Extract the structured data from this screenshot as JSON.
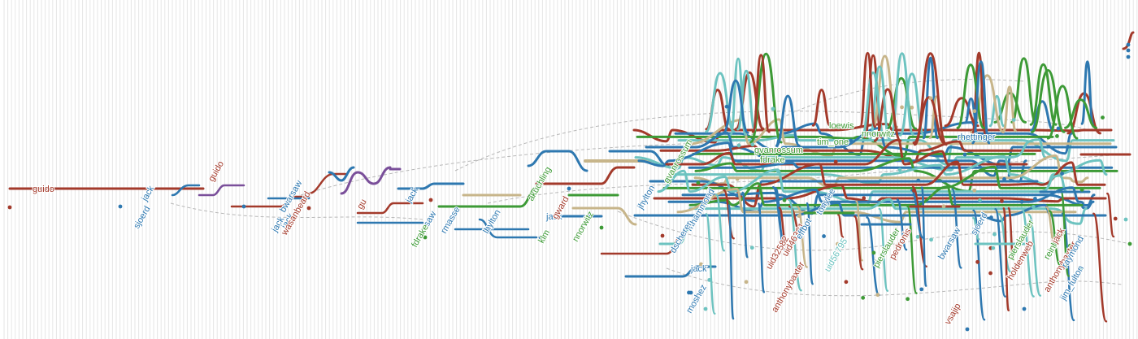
{
  "palette": {
    "red": "#a33a2b",
    "blue": "#2e78b0",
    "green": "#3d9a36",
    "teal": "#6dc3c0",
    "tan": "#c7b58a",
    "purple": "#7a4f9a",
    "grid": "#e6e6e6",
    "dashed": "#b8b8b8"
  },
  "labels": [
    {
      "text": "guido",
      "color": "red",
      "rotate": 0
    },
    {
      "text": "jack",
      "color": "blue",
      "rotate": -60
    },
    {
      "text": "sjoerd",
      "color": "blue",
      "rotate": -60
    },
    {
      "text": "guido",
      "color": "red",
      "rotate": -60
    },
    {
      "text": "bwarsaw",
      "color": "blue",
      "rotate": -60
    },
    {
      "text": "jack",
      "color": "blue",
      "rotate": -60
    },
    {
      "text": "jack",
      "color": "blue",
      "rotate": -60
    },
    {
      "text": "wasanbeard",
      "color": "red",
      "rotate": -60
    },
    {
      "text": "gu",
      "color": "red",
      "rotate": -60
    },
    {
      "text": "jack",
      "color": "blue",
      "rotate": -60
    },
    {
      "text": "bwarsaw",
      "color": "blue",
      "rotate": -60
    },
    {
      "text": "rmasse",
      "color": "blue",
      "rotate": -60
    },
    {
      "text": "fdrake",
      "color": "green",
      "rotate": -60
    },
    {
      "text": "lhylton",
      "color": "blue",
      "rotate": -60
    },
    {
      "text": "akuchling",
      "color": "green",
      "rotate": -60
    },
    {
      "text": "jack",
      "color": "blue",
      "rotate": 0
    },
    {
      "text": "klm",
      "color": "green",
      "rotate": -60
    },
    {
      "text": "gward",
      "color": "red",
      "rotate": -60
    },
    {
      "text": "nnorwitz",
      "color": "green",
      "rotate": -60
    },
    {
      "text": "jhylton",
      "color": "blue",
      "rotate": -60
    },
    {
      "text": "gvanrossum",
      "color": "green",
      "rotate": -60
    },
    {
      "text": "jack",
      "color": "blue",
      "rotate": 0
    },
    {
      "text": "mhammond",
      "color": "blue",
      "rotate": -60
    },
    {
      "text": "dscherer",
      "color": "blue",
      "rotate": -60
    },
    {
      "text": "moshez",
      "color": "blue",
      "rotate": -60
    },
    {
      "text": "fdrake",
      "color": "green",
      "rotate": 0
    },
    {
      "text": "gvanrossum",
      "color": "green",
      "rotate": 0
    },
    {
      "text": "tim_one",
      "color": "green",
      "rotate": 0
    },
    {
      "text": "loewis",
      "color": "green",
      "rotate": 0
    },
    {
      "text": "nnorwitz",
      "color": "green",
      "rotate": 0
    },
    {
      "text": "rhettinger",
      "color": "blue",
      "rotate": 0
    },
    {
      "text": "anthonybaxter",
      "color": "red",
      "rotate": -60
    },
    {
      "text": "uid32582",
      "color": "red",
      "rotate": -60
    },
    {
      "text": "uid46301",
      "color": "red",
      "rotate": -60
    },
    {
      "text": "uid56795",
      "color": "teal",
      "rotate": -60
    },
    {
      "text": "effbot",
      "color": "blue",
      "rotate": -60
    },
    {
      "text": "tonylee",
      "color": "blue",
      "rotate": -60
    },
    {
      "text": "pierslauder",
      "color": "green",
      "rotate": -60
    },
    {
      "text": "pedronis",
      "color": "red",
      "rotate": -60
    },
    {
      "text": "vsajip",
      "color": "red",
      "rotate": -60
    },
    {
      "text": "bwarsaw",
      "color": "blue",
      "rotate": -60
    },
    {
      "text": "sjoerd",
      "color": "blue",
      "rotate": -60
    },
    {
      "text": "holdenweb",
      "color": "red",
      "rotate": -60
    },
    {
      "text": "anthonybaxter",
      "color": "red",
      "rotate": -60
    },
    {
      "text": "raymond",
      "color": "blue",
      "rotate": -60
    },
    {
      "text": "jim_fulton",
      "color": "blue",
      "rotate": -60
    },
    {
      "text": "reinhold",
      "color": "green",
      "rotate": -60
    },
    {
      "text": "jack",
      "color": "red",
      "rotate": -60
    },
    {
      "text": "pierslauder",
      "color": "green",
      "rotate": -60
    }
  ]
}
